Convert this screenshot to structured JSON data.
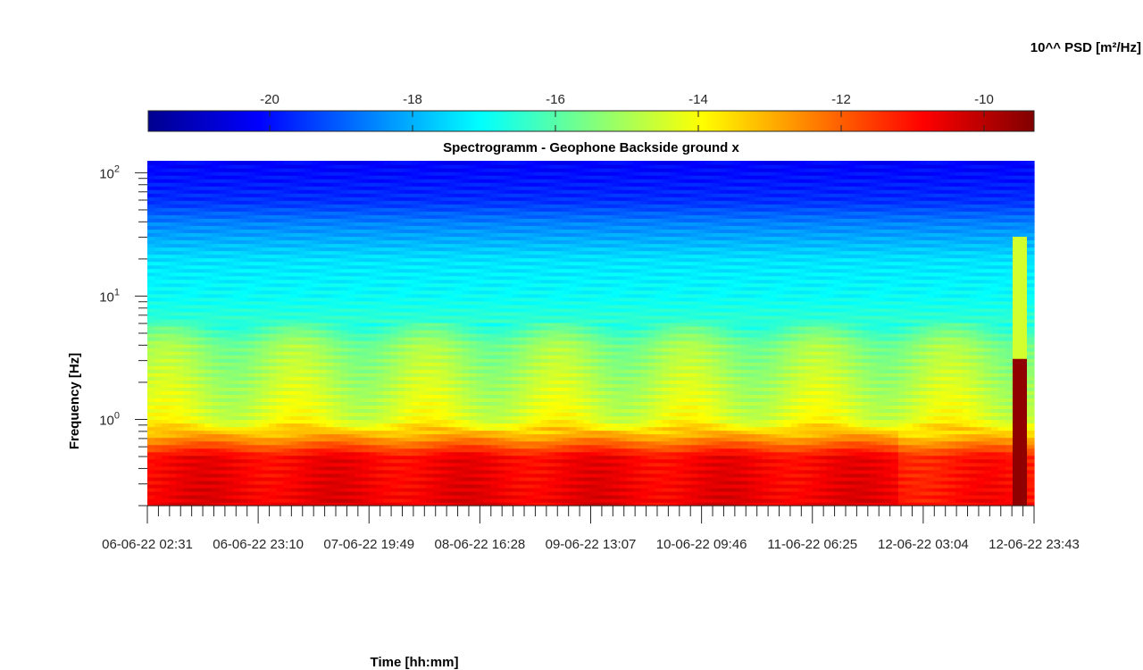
{
  "chart_data": {
    "type": "heatmap",
    "title": "Spectrogramm - Geophone Backside ground x",
    "xlabel": "Time [hh:mm]",
    "ylabel": "Frequency [Hz]",
    "y_scale": "log",
    "ylim": [
      0.2,
      125
    ],
    "xlim": [
      "06-06-22 02:31",
      "12-06-22 23:43"
    ],
    "x_tick_labels": [
      "06-06-22 02:31",
      "06-06-22 23:10",
      "07-06-22 19:49",
      "08-06-22 16:28",
      "09-06-22 13:07",
      "10-06-22 09:46",
      "11-06-22 06:25",
      "12-06-22 03:04",
      "12-06-22 23:43"
    ],
    "y_ticks": [
      {
        "base": "10",
        "exp": "0"
      },
      {
        "base": "10",
        "exp": "1"
      },
      {
        "base": "10",
        "exp": "2"
      }
    ],
    "colorbar": {
      "label": "10^^ PSD [m²/Hz]",
      "range": [
        -21.7,
        -9.3
      ],
      "tick_labels": [
        "-20",
        "-18",
        "-16",
        "-14",
        "-12",
        "-10"
      ],
      "colormap": "jet"
    },
    "psd_profile_by_frequency": [
      {
        "freq": 0.2,
        "log_psd": -10.6
      },
      {
        "freq": 0.5,
        "log_psd": -10.8
      },
      {
        "freq": 0.75,
        "log_psd": -13.0
      },
      {
        "freq": 1.0,
        "log_psd": -14.3
      },
      {
        "freq": 2.0,
        "log_psd": -14.8
      },
      {
        "freq": 4.0,
        "log_psd": -15.3
      },
      {
        "freq": 6.0,
        "log_psd": -16.4
      },
      {
        "freq": 10.0,
        "log_psd": -17.0
      },
      {
        "freq": 20.0,
        "log_psd": -17.4
      },
      {
        "freq": 40.0,
        "log_psd": -18.6
      },
      {
        "freq": 60.0,
        "log_psd": -19.6
      },
      {
        "freq": 125.0,
        "log_psd": -20.2
      }
    ],
    "transient_events": [
      {
        "time": "12-06-22 22:30",
        "freq_range": [
          0.2,
          30
        ],
        "peak_log_psd": -9.5
      }
    ]
  }
}
